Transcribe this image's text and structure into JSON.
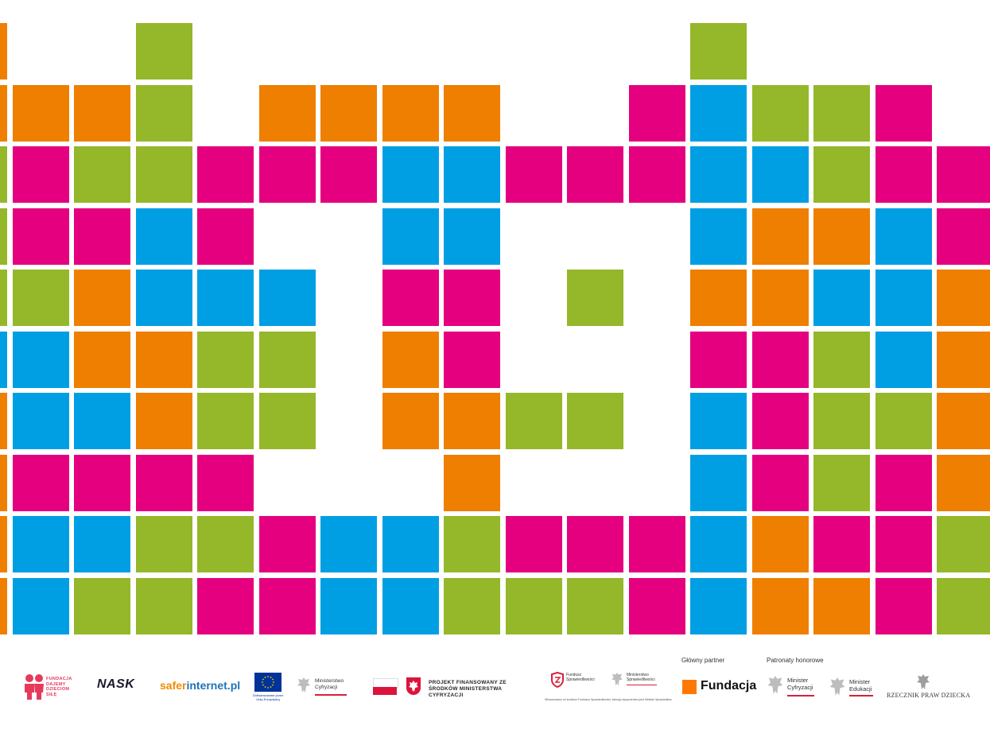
{
  "colors": {
    "O": "#ee7f00",
    "G": "#95b72a",
    "P": "#e4007f",
    "B": "#009fe3"
  },
  "grid_rows": [
    "O..G........G....",
    "OOOG.OOOO..PBGGP.",
    "GPGGPPPBBPPPBBGPP",
    "GPPBP..BB...BOOBP",
    "GGOBBB.PP.G.OOBBO",
    "BBOOGG.OP...PPGBO",
    "OBBOGG.OOGG.BPGGO",
    "OPPPP...O...BPGPO",
    "OBBGGPBBGPPPBOPPG",
    "OBGGPPBBGGGPBOOPG"
  ],
  "footer": {
    "fdds_text": "FUNDACJA DAJEMY DZIECIOM SIŁĘ",
    "nask": "NASK",
    "safer_a": "safer",
    "safer_b": "internet.pl",
    "eu_caption": "Dofinansowane przez Unię Europejską",
    "min_cyfr": "Ministerstwo Cyfryzacji",
    "project": "PROJEKT FINANSOWANY ZE ŚRODKÓW MINISTERSTWA CYFRYZACJI",
    "fundusz": "Fundusz Sprawiedliwości",
    "min_spraw": "Ministerstwo Sprawiedliwości",
    "fundusz_caption": "Sfinansowano ze środków Funduszu Sprawiedliwości, którego dysponentem jest Minister Sprawiedliwości",
    "main_partner_label": "Główny partner",
    "fundacja": "Fundacja",
    "honorary_label": "Patronaty honorowe",
    "minister_cyfr": "Minister Cyfryzacji",
    "minister_edu": "Minister Edukacji",
    "rpd": "RZECZNIK PRAW DZIECKA"
  }
}
